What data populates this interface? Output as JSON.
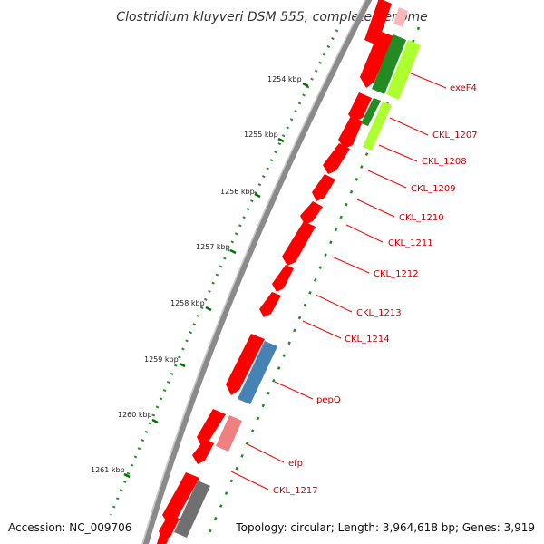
{
  "title": "Clostridium kluyveri DSM 555, complete genome",
  "footer": {
    "accession": "Accession: NC_009706",
    "topology": "Topology: circular; Length: 3,964,618 bp; Genes: 3,919"
  },
  "colors": {
    "gene_red": "#ff0000",
    "gene_pink": "#f08080",
    "gene_blue": "#4682b4",
    "gene_grey": "#707070",
    "gene_green_dark": "#228b22",
    "gene_green_light": "#adff2f",
    "label_red": "#cc0000",
    "backbone": "#888888",
    "tick_green": "#008000"
  },
  "kbp_ticks": [
    "1254 kbp",
    "1255 kbp",
    "1256 kbp",
    "1257 kbp",
    "1258 kbp",
    "1259 kbp",
    "1260 kbp",
    "1261 kbp"
  ],
  "gene_labels": [
    "exeF4",
    "CKL_1207",
    "CKL_1208",
    "CKL_1209",
    "CKL_1210",
    "CKL_1211",
    "CKL_1212",
    "CKL_1213",
    "CKL_1214",
    "pepQ",
    "efp",
    "CKL_1217"
  ]
}
